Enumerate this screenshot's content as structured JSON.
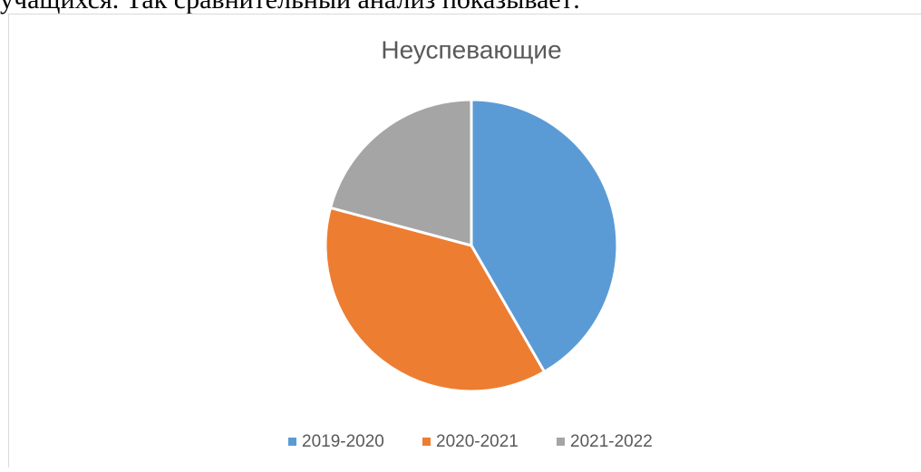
{
  "page_text": "учащихся. Так сравнительный анализ показывает:",
  "chart_data": {
    "type": "pie",
    "title": "Неуспевающие",
    "categories": [
      "2019-2020",
      "2020-2021",
      "2021-2022"
    ],
    "values": [
      10,
      9,
      5
    ],
    "colors": [
      "#5b9bd5",
      "#ed7d31",
      "#a5a5a5"
    ],
    "legend": "bottom"
  }
}
